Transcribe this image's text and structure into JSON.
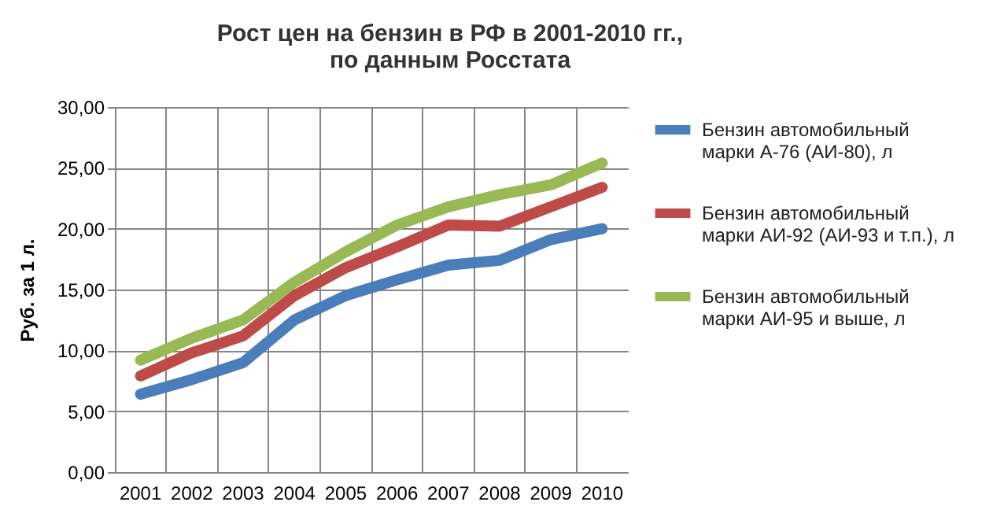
{
  "chart_data": {
    "type": "line",
    "title": "Рост цен на бензин в РФ в 2001-2010 гг., по данным Росстата",
    "ylabel": "Руб. за 1 л.",
    "categories": [
      "2001",
      "2002",
      "2003",
      "2004",
      "2005",
      "2006",
      "2007",
      "2008",
      "2009",
      "2010"
    ],
    "series": [
      {
        "name": "Бензин автомобильный марки А-76 (АИ-80), л",
        "color": "#4a7ebb",
        "values": [
          6.4,
          7.6,
          9.0,
          12.5,
          14.5,
          15.8,
          17.0,
          17.4,
          19.1,
          20.0
        ]
      },
      {
        "name": "Бензин автомобильный марки АИ-92 (АИ-93 и т.п.), л",
        "color": "#be4b48",
        "values": [
          7.9,
          9.8,
          11.2,
          14.5,
          16.8,
          18.5,
          20.3,
          20.2,
          21.8,
          23.4
        ]
      },
      {
        "name": "Бензин автомобильный марки АИ-95 и выше, л",
        "color": "#98b954",
        "values": [
          9.2,
          11.0,
          12.5,
          15.6,
          18.1,
          20.3,
          21.8,
          22.8,
          23.6,
          25.4
        ]
      }
    ],
    "ylim": [
      0,
      30
    ],
    "yticks": [
      {
        "value": 0,
        "label": "0,00"
      },
      {
        "value": 5,
        "label": "5,00"
      },
      {
        "value": 10,
        "label": "10,00"
      },
      {
        "value": 15,
        "label": "15,00"
      },
      {
        "value": 20,
        "label": "20,00"
      },
      {
        "value": 25,
        "label": "25,00"
      },
      {
        "value": 30,
        "label": "30,00"
      }
    ],
    "grid": true,
    "legend": "right",
    "marker": "none",
    "line_style": "solid"
  }
}
